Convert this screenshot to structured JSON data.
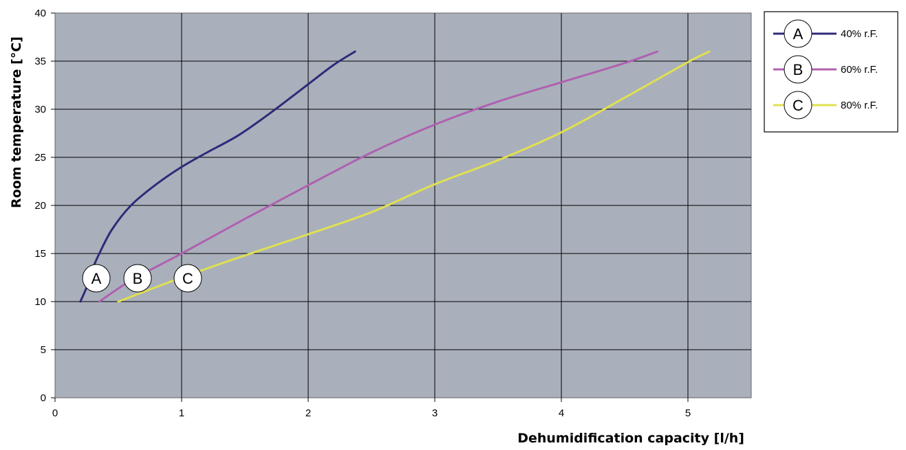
{
  "chart_data": {
    "type": "line",
    "title": "",
    "xlabel": "Dehumidification capacity [l/h]",
    "ylabel": "Room temperature [°C]",
    "xlim": [
      0,
      5.5
    ],
    "ylim": [
      0,
      40
    ],
    "xticks": [
      0,
      1,
      2,
      3,
      4,
      5
    ],
    "yticks": [
      0,
      5,
      10,
      15,
      20,
      25,
      30,
      35,
      40
    ],
    "grid": true,
    "plot_background": "#a9b0bb",
    "legend_position": "right-top",
    "series": [
      {
        "name": "40% r.F.",
        "marker": "A",
        "color": "#2e2a7a",
        "points": [
          [
            0.2,
            10
          ],
          [
            0.25,
            11.5
          ],
          [
            0.3,
            13.5
          ],
          [
            0.35,
            15
          ],
          [
            0.45,
            17.5
          ],
          [
            0.6,
            20
          ],
          [
            0.8,
            22.2
          ],
          [
            1.0,
            24
          ],
          [
            1.2,
            25.5
          ],
          [
            1.45,
            27.3
          ],
          [
            1.7,
            29.6
          ],
          [
            2.0,
            32.6
          ],
          [
            2.2,
            34.6
          ],
          [
            2.37,
            36
          ]
        ]
      },
      {
        "name": "60% r.F.",
        "marker": "B",
        "color": "#b060b0",
        "points": [
          [
            0.35,
            10
          ],
          [
            0.6,
            12.2
          ],
          [
            1.0,
            15
          ],
          [
            1.5,
            18.6
          ],
          [
            2.0,
            22.1
          ],
          [
            2.5,
            25.5
          ],
          [
            3.0,
            28.4
          ],
          [
            3.5,
            30.8
          ],
          [
            4.0,
            32.8
          ],
          [
            4.5,
            34.8
          ],
          [
            4.76,
            36
          ]
        ]
      },
      {
        "name": "80% r.F.",
        "marker": "C",
        "color": "#e0e050",
        "points": [
          [
            0.5,
            10
          ],
          [
            1.0,
            12.5
          ],
          [
            1.5,
            14.8
          ],
          [
            2.0,
            17.0
          ],
          [
            2.5,
            19.3
          ],
          [
            3.0,
            22.2
          ],
          [
            3.5,
            24.7
          ],
          [
            4.0,
            27.6
          ],
          [
            4.5,
            31.2
          ],
          [
            5.0,
            34.9
          ],
          [
            5.17,
            36
          ]
        ]
      }
    ]
  }
}
